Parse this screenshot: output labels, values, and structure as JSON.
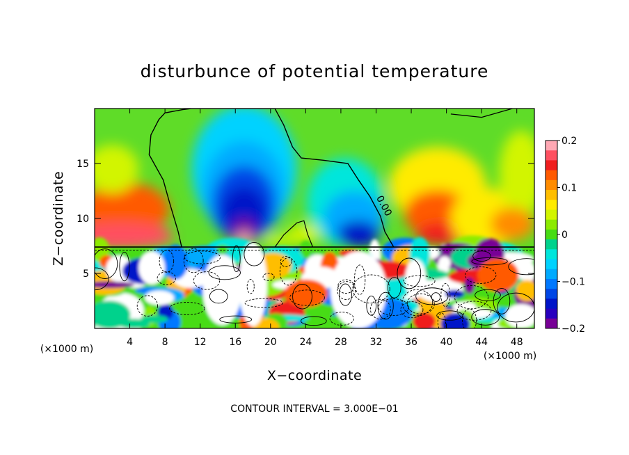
{
  "chart_data": {
    "type": "heatmap",
    "title": "disturbunce of potential temperature",
    "xlabel": "X−coordinate",
    "ylabel": "Z−coordinate",
    "x_unit": "(×1000 m)",
    "x_unit_right": "(×1000 m)",
    "footer": "CONTOUR INTERVAL = 3.000E−01",
    "xlim": [
      0,
      50
    ],
    "ylim": [
      0,
      20
    ],
    "xticks": [
      4,
      8,
      12,
      16,
      20,
      24,
      28,
      32,
      36,
      40,
      44,
      48
    ],
    "yticks": [
      5,
      10,
      15
    ],
    "colorbar": {
      "range": [
        -0.2,
        0.2
      ],
      "tick_values": [
        0.2,
        0.1,
        0,
        -0.1,
        -0.2
      ],
      "tick_labels": [
        "0.2",
        "0.1",
        "0",
        "−0.1",
        "−0.2"
      ],
      "colors": [
        "#ffa8b4",
        "#ff5060",
        "#f01e1e",
        "#ff5a00",
        "#ff8c00",
        "#ffbe00",
        "#ffeb00",
        "#d2f500",
        "#8ceb00",
        "#46dc14",
        "#00d28c",
        "#00e6dc",
        "#00d2ff",
        "#00aaff",
        "#0078ff",
        "#0046e6",
        "#0014c8",
        "#2800be",
        "#780096"
      ]
    },
    "contour_label": "0.00",
    "notes": [
      "interface level z ≈ 7.4"
    ]
  }
}
